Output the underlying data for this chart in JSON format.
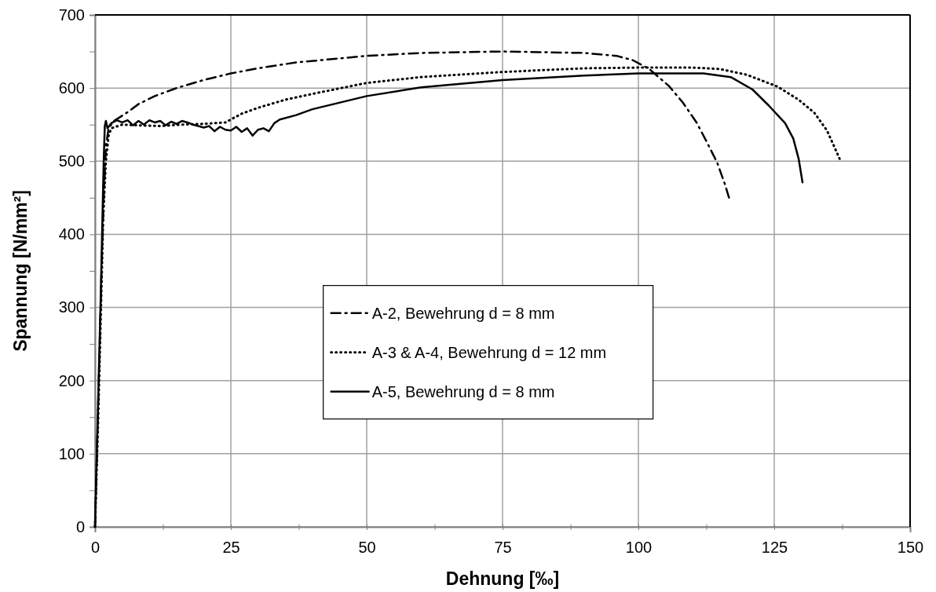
{
  "chart_data": {
    "type": "line",
    "xlabel": "Dehnung [‰]",
    "ylabel": "Spannung [N/mm²]",
    "xlim": [
      0,
      150
    ],
    "ylim": [
      0,
      700
    ],
    "xticks": [
      0,
      {
        "value": 12.5,
        "label": null
      },
      25,
      {
        "value": 37.5,
        "label": null
      },
      50,
      {
        "value": 62.5,
        "label": null
      },
      75,
      {
        "value": 87.5,
        "label": null
      },
      100,
      {
        "value": 112.5,
        "label": null
      },
      125,
      {
        "value": 137.5,
        "label": null
      },
      150
    ],
    "yticks": [
      0,
      {
        "value": 50,
        "label": null
      },
      100,
      {
        "value": 150,
        "label": null
      },
      200,
      {
        "value": 250,
        "label": null
      },
      300,
      {
        "value": 350,
        "label": null
      },
      400,
      {
        "value": 450,
        "label": null
      },
      500,
      {
        "value": 550,
        "label": null
      },
      600,
      {
        "value": 650,
        "label": null
      },
      700
    ],
    "grid": true,
    "legend": "center",
    "marker": "none",
    "series": [
      {
        "name": "A-2, Bewehrung d = 8 mm",
        "color": "#000000",
        "line_style": "dashdot",
        "x": [
          0,
          0.7,
          1.2,
          1.6,
          2,
          2.5,
          3.5,
          5.6,
          8,
          11,
          15,
          20,
          25,
          30,
          37,
          50,
          60,
          75,
          90,
          96,
          99,
          102,
          105.6,
          108.2,
          110.7,
          112.6,
          114.5,
          115.9,
          116.8
        ],
        "values": [
          0,
          200,
          350,
          450,
          520,
          545,
          555,
          565,
          578,
          589,
          600,
          611,
          620,
          627,
          635,
          644,
          648,
          650,
          648,
          644,
          638,
          626,
          603,
          580,
          553,
          526,
          498,
          469,
          447
        ]
      },
      {
        "name": "A-3 & A-4,  Bewehrung d = 12 mm",
        "color": "#000000",
        "line_style": "dotted",
        "x": [
          0,
          0.6,
          1.1,
          1.5,
          2,
          2.5,
          3,
          5,
          8,
          12,
          16,
          20,
          24,
          25,
          27,
          30,
          35,
          40,
          50,
          60,
          75,
          90,
          100,
          110,
          115,
          120,
          125.6,
          129.5,
          132.4,
          134.7,
          136.1,
          137.1
        ],
        "values": [
          0,
          150,
          300,
          420,
          500,
          535,
          545,
          550,
          549,
          548,
          550,
          551,
          553,
          557,
          565,
          573,
          584,
          592,
          607,
          615,
          622,
          627,
          628,
          628,
          626,
          618,
          602,
          584,
          566,
          542,
          519,
          502
        ]
      },
      {
        "name": "A-5, Bewehrung d = 8 mm",
        "color": "#000000",
        "line_style": "solid",
        "x": [
          0,
          0.5,
          1,
          1.3,
          1.6,
          1.8,
          2,
          2.3,
          3,
          4,
          5,
          6,
          7,
          8,
          9,
          10,
          11,
          12,
          13,
          14,
          15,
          16,
          17,
          18,
          19,
          20,
          21,
          22,
          23,
          24,
          25,
          26,
          27,
          28,
          29,
          30,
          31,
          32,
          33,
          34,
          37,
          40,
          50,
          60,
          75,
          90,
          100,
          112,
          117,
          121,
          124,
          127,
          128.5,
          129.5,
          130.2
        ],
        "values": [
          0,
          150,
          300,
          400,
          500,
          548,
          555,
          545,
          552,
          556,
          553,
          556,
          549,
          555,
          550,
          556,
          553,
          555,
          549,
          554,
          551,
          555,
          553,
          550,
          548,
          546,
          548,
          541,
          547,
          543,
          542,
          547,
          540,
          545,
          535,
          543,
          545,
          541,
          552,
          557,
          563,
          571,
          589,
          601,
          611,
          617,
          620,
          620,
          615,
          598,
          576,
          552,
          531,
          503,
          471
        ]
      }
    ]
  }
}
